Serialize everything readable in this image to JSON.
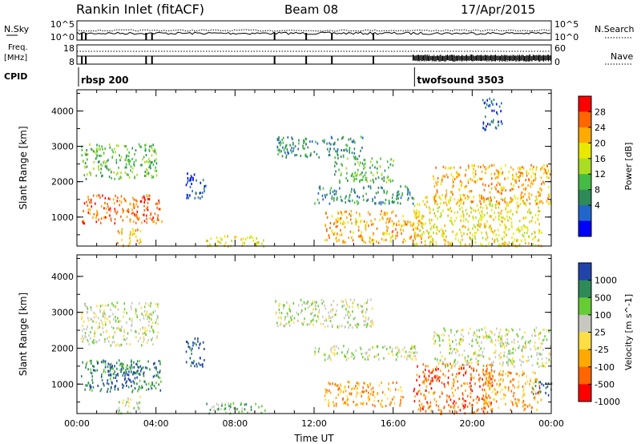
{
  "header": {
    "station": "Rankin Inlet (fitACF)",
    "beam": "Beam 08",
    "date": "17/Apr/2015"
  },
  "strips": {
    "nsky_label": "N.Sky",
    "nsky_ticks": [
      "10^5",
      "10^0"
    ],
    "nsearch_label": "N.Search",
    "nsearch_ticks": [
      "10^5",
      "10^0"
    ],
    "freq_label_1": "Freq.",
    "freq_label_2": "[MHz]",
    "freq_ticks": [
      "18",
      "8"
    ],
    "nave_label": "Nave",
    "nave_ticks": [
      "60",
      "0"
    ],
    "cpid_label": "CPID",
    "cpid_modes": [
      {
        "name": "rbsp 200",
        "start_hour": 0.0
      },
      {
        "name": "twofsound 3503",
        "start_hour": 17.0
      }
    ]
  },
  "chart_data": [
    {
      "type": "heatmap",
      "title": "Power",
      "ylabel": "Slant Range [km]",
      "yticks": [
        "4000",
        "3000",
        "2000",
        "1000"
      ],
      "xticks": [
        "00:00",
        "04:00",
        "08:00",
        "12:00",
        "16:00",
        "20:00",
        "00:00"
      ],
      "xlim_hours": [
        0,
        24
      ],
      "ylim_km": [
        180,
        4600
      ],
      "colorbar": {
        "label": "Power [dB]",
        "ticks": [
          "28",
          "24",
          "20",
          "16",
          "12",
          "8",
          "4"
        ],
        "colors": [
          "#ff0000",
          "#ff6600",
          "#ffaa00",
          "#e8e800",
          "#aadd22",
          "#44bb44",
          "#2e8b57",
          "#2266cc",
          "#0000ff"
        ]
      },
      "regions": [
        {
          "x": [
            0.2,
            4.1
          ],
          "y": [
            2100,
            3100
          ],
          "level": 5
        },
        {
          "x": [
            0.2,
            4.3
          ],
          "y": [
            850,
            1650
          ],
          "level": 1
        },
        {
          "x": [
            2.0,
            3.2
          ],
          "y": [
            200,
            700
          ],
          "level": 2
        },
        {
          "x": [
            5.5,
            6.5
          ],
          "y": [
            1500,
            2300
          ],
          "level": 7
        },
        {
          "x": [
            6.5,
            9.5
          ],
          "y": [
            200,
            500
          ],
          "level": 3
        },
        {
          "x": [
            10.0,
            14.5
          ],
          "y": [
            2700,
            3300
          ],
          "level": 6
        },
        {
          "x": [
            13.0,
            16.0
          ],
          "y": [
            2000,
            2700
          ],
          "level": 5
        },
        {
          "x": [
            12.0,
            17.0
          ],
          "y": [
            1400,
            1900
          ],
          "level": 6
        },
        {
          "x": [
            12.5,
            17.5
          ],
          "y": [
            300,
            1200
          ],
          "level": 2
        },
        {
          "x": [
            17.0,
            23.5
          ],
          "y": [
            200,
            1600
          ],
          "level": 3
        },
        {
          "x": [
            18.0,
            24.0
          ],
          "y": [
            1400,
            2500
          ],
          "level": 2
        },
        {
          "x": [
            20.5,
            21.5
          ],
          "y": [
            3500,
            4400
          ],
          "level": 7
        }
      ]
    },
    {
      "type": "heatmap",
      "title": "Velocity",
      "ylabel": "Slant Range [km]",
      "yticks": [
        "4000",
        "3000",
        "2000",
        "1000"
      ],
      "xticks": [
        "00:00",
        "04:00",
        "08:00",
        "12:00",
        "16:00",
        "20:00",
        "00:00"
      ],
      "xaxis_label": "Time UT",
      "xlim_hours": [
        0,
        24
      ],
      "ylim_km": [
        180,
        4600
      ],
      "colorbar": {
        "label": "Velocity [m s^-1]",
        "ticks": [
          "1000",
          "500",
          "100",
          "25",
          "-25",
          "-100",
          "-500",
          "-1000"
        ],
        "colors": [
          "#2244aa",
          "#2e8b57",
          "#66cc33",
          "#c8c8c0",
          "#ffdd44",
          "#ffaa00",
          "#ff6600",
          "#ff0000"
        ]
      },
      "regions": [
        {
          "x": [
            0.2,
            4.1
          ],
          "y": [
            2100,
            3300
          ],
          "level": 3
        },
        {
          "x": [
            0.2,
            4.3
          ],
          "y": [
            800,
            1700
          ],
          "level": 1
        },
        {
          "x": [
            1.5,
            3.2
          ],
          "y": [
            1000,
            1600
          ],
          "level": 0
        },
        {
          "x": [
            2.0,
            3.2
          ],
          "y": [
            200,
            700
          ],
          "level": 3
        },
        {
          "x": [
            5.5,
            6.5
          ],
          "y": [
            1500,
            2300
          ],
          "level": 0
        },
        {
          "x": [
            6.5,
            9.5
          ],
          "y": [
            200,
            500
          ],
          "level": 2
        },
        {
          "x": [
            10.0,
            15.0
          ],
          "y": [
            2600,
            3400
          ],
          "level": 3
        },
        {
          "x": [
            12.0,
            17.5
          ],
          "y": [
            1700,
            2100
          ],
          "level": 3
        },
        {
          "x": [
            12.5,
            16.5
          ],
          "y": [
            400,
            1100
          ],
          "level": 5
        },
        {
          "x": [
            17.0,
            21.0
          ],
          "y": [
            200,
            1600
          ],
          "level": 6
        },
        {
          "x": [
            20.5,
            23.5
          ],
          "y": [
            300,
            1400
          ],
          "level": 5
        },
        {
          "x": [
            18.0,
            24.0
          ],
          "y": [
            1500,
            2600
          ],
          "level": 3
        },
        {
          "x": [
            23.0,
            24.0
          ],
          "y": [
            700,
            1100
          ],
          "level": 1
        }
      ]
    }
  ]
}
